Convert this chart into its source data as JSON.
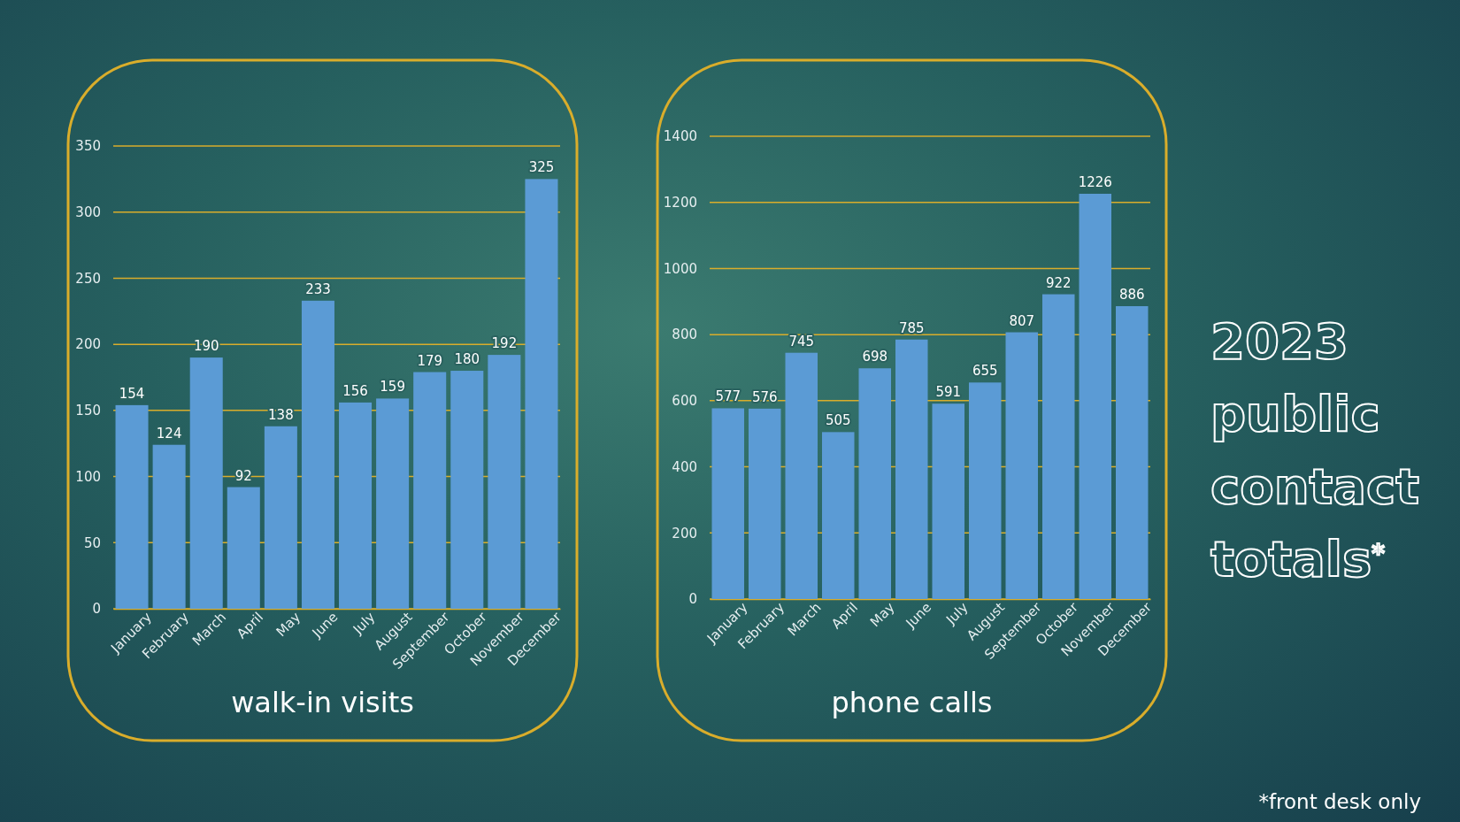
{
  "chart_data": [
    {
      "type": "bar",
      "xlabel": "walk-in visits",
      "categories": [
        "January",
        "February",
        "March",
        "April",
        "May",
        "June",
        "July",
        "August",
        "September",
        "October",
        "November",
        "December"
      ],
      "values": [
        154,
        124,
        190,
        92,
        138,
        233,
        156,
        159,
        179,
        180,
        192,
        325
      ],
      "color": "#5b9bd5",
      "ylim": [
        0,
        350
      ],
      "yticks": [
        0,
        50,
        100,
        150,
        200,
        250,
        300,
        350
      ],
      "grid": "y",
      "data_labels": true
    },
    {
      "type": "bar",
      "xlabel": "phone calls",
      "categories": [
        "January",
        "February",
        "March",
        "April",
        "May",
        "June",
        "July",
        "August",
        "September",
        "October",
        "November",
        "December"
      ],
      "values": [
        577,
        576,
        745,
        505,
        698,
        785,
        591,
        655,
        807,
        922,
        1226,
        886
      ],
      "color": "#5b9bd5",
      "ylim": [
        0,
        1400
      ],
      "yticks": [
        0,
        200,
        400,
        600,
        800,
        1000,
        1200,
        1400
      ],
      "grid": "y",
      "data_labels": true
    },
    {
      "type": "other",
      "title": "2023 public contact totals$^{*}$",
      "annotations": [
        "*front desk only"
      ]
    }
  ]
}
